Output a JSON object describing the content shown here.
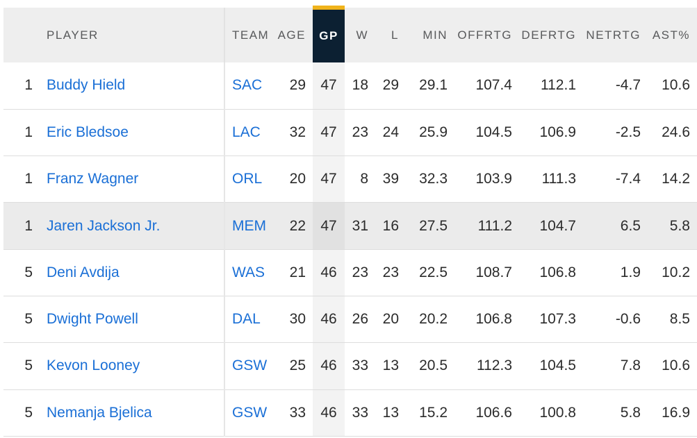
{
  "columns": {
    "player": "PLAYER",
    "team": "TEAM",
    "age": "AGE",
    "gp": "GP",
    "w": "W",
    "l": "L",
    "min": "MIN",
    "offrtg": "OFFRTG",
    "defrtg": "DEFRTG",
    "netrtg": "NETRTG",
    "ast": "AST%"
  },
  "sorted_column": "gp",
  "colors": {
    "link": "#1a6fd6",
    "sorted_header_bg": "#0c2032",
    "sorted_header_accent": "#f0b31b",
    "header_bg": "#eeeeee",
    "row_highlight": "#ebebeb"
  },
  "rows": [
    {
      "rank": "1",
      "player": "Buddy Hield",
      "team": "SAC",
      "age": "29",
      "gp": "47",
      "w": "18",
      "l": "29",
      "min": "29.1",
      "offrtg": "107.4",
      "defrtg": "112.1",
      "netrtg": "-4.7",
      "ast": "10.6"
    },
    {
      "rank": "1",
      "player": "Eric Bledsoe",
      "team": "LAC",
      "age": "32",
      "gp": "47",
      "w": "23",
      "l": "24",
      "min": "25.9",
      "offrtg": "104.5",
      "defrtg": "106.9",
      "netrtg": "-2.5",
      "ast": "24.6"
    },
    {
      "rank": "1",
      "player": "Franz Wagner",
      "team": "ORL",
      "age": "20",
      "gp": "47",
      "w": "8",
      "l": "39",
      "min": "32.3",
      "offrtg": "103.9",
      "defrtg": "111.3",
      "netrtg": "-7.4",
      "ast": "14.2"
    },
    {
      "rank": "1",
      "player": "Jaren Jackson Jr.",
      "team": "MEM",
      "age": "22",
      "gp": "47",
      "w": "31",
      "l": "16",
      "min": "27.5",
      "offrtg": "111.2",
      "defrtg": "104.7",
      "netrtg": "6.5",
      "ast": "5.8"
    },
    {
      "rank": "5",
      "player": "Deni Avdija",
      "team": "WAS",
      "age": "21",
      "gp": "46",
      "w": "23",
      "l": "23",
      "min": "22.5",
      "offrtg": "108.7",
      "defrtg": "106.8",
      "netrtg": "1.9",
      "ast": "10.2"
    },
    {
      "rank": "5",
      "player": "Dwight Powell",
      "team": "DAL",
      "age": "30",
      "gp": "46",
      "w": "26",
      "l": "20",
      "min": "20.2",
      "offrtg": "106.8",
      "defrtg": "107.3",
      "netrtg": "-0.6",
      "ast": "8.5"
    },
    {
      "rank": "5",
      "player": "Kevon Looney",
      "team": "GSW",
      "age": "25",
      "gp": "46",
      "w": "33",
      "l": "13",
      "min": "20.5",
      "offrtg": "112.3",
      "defrtg": "104.5",
      "netrtg": "7.8",
      "ast": "10.6"
    },
    {
      "rank": "5",
      "player": "Nemanja Bjelica",
      "team": "GSW",
      "age": "33",
      "gp": "46",
      "w": "33",
      "l": "13",
      "min": "15.2",
      "offrtg": "106.6",
      "defrtg": "100.8",
      "netrtg": "5.8",
      "ast": "16.9"
    }
  ]
}
